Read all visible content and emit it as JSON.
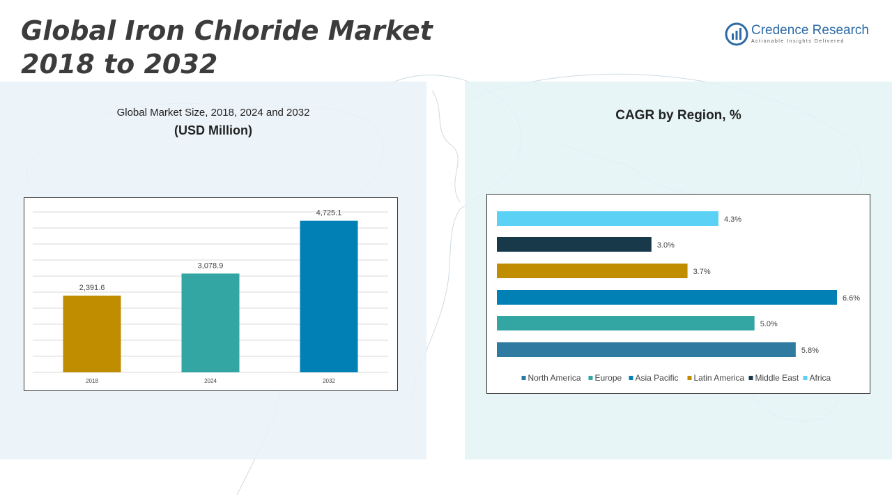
{
  "header": {
    "title_line1": "Global Iron Chloride Market",
    "title_line2": "2018 to 2032",
    "logo_name": "Credence Research",
    "logo_tagline": "Actionable Insights Delivered"
  },
  "left_panel": {
    "subtitle": "Global Market Size, 2018, 2024 and 2032",
    "unit": "(USD Million)"
  },
  "right_panel": {
    "title": "CAGR by Region, %"
  },
  "colors": {
    "north_america": "#2e7aa0",
    "europe": "#33a6a3",
    "asia_pacific": "#0080b4",
    "latin_america": "#c08c00",
    "middle_east": "#17394a",
    "africa": "#5cd1f6",
    "bar_2018": "#c08c00",
    "bar_2024": "#33a6a3",
    "bar_2032": "#0080b4"
  },
  "chart_data": [
    {
      "type": "bar",
      "title": "Global Market Size, 2018, 2024 and 2032",
      "ylabel": "(USD Million)",
      "categories": [
        "2018",
        "2024",
        "2032"
      ],
      "values": [
        2391.6,
        3078.9,
        4725.1
      ],
      "value_labels": [
        "2,391.6",
        "3,078.9",
        "4,725.1"
      ],
      "colors": [
        "#c08c00",
        "#33a6a3",
        "#0080b4"
      ],
      "ylim": [
        0,
        5000
      ],
      "grid": true
    },
    {
      "type": "bar",
      "orientation": "horizontal",
      "title": "CAGR by Region, %",
      "categories": [
        "Africa",
        "Middle East",
        "Latin America",
        "Asia Pacific",
        "Europe",
        "North America"
      ],
      "values": [
        4.3,
        3.0,
        3.7,
        6.6,
        5.0,
        5.8
      ],
      "value_labels": [
        "4.3%",
        "3.0%",
        "3.7%",
        "6.6%",
        "5.0%",
        "5.8%"
      ],
      "colors": [
        "#5cd1f6",
        "#17394a",
        "#c08c00",
        "#0080b4",
        "#33a6a3",
        "#2e7aa0"
      ],
      "legend": [
        "North America",
        "Europe",
        "Asia Pacific",
        "Latin America",
        "Middle East",
        "Africa"
      ],
      "legend_colors": [
        "#2e7aa0",
        "#33a6a3",
        "#0080b4",
        "#c08c00",
        "#17394a",
        "#5cd1f6"
      ],
      "legend_position": "bottom",
      "xlim": [
        0,
        6.6
      ],
      "grid": false
    }
  ]
}
